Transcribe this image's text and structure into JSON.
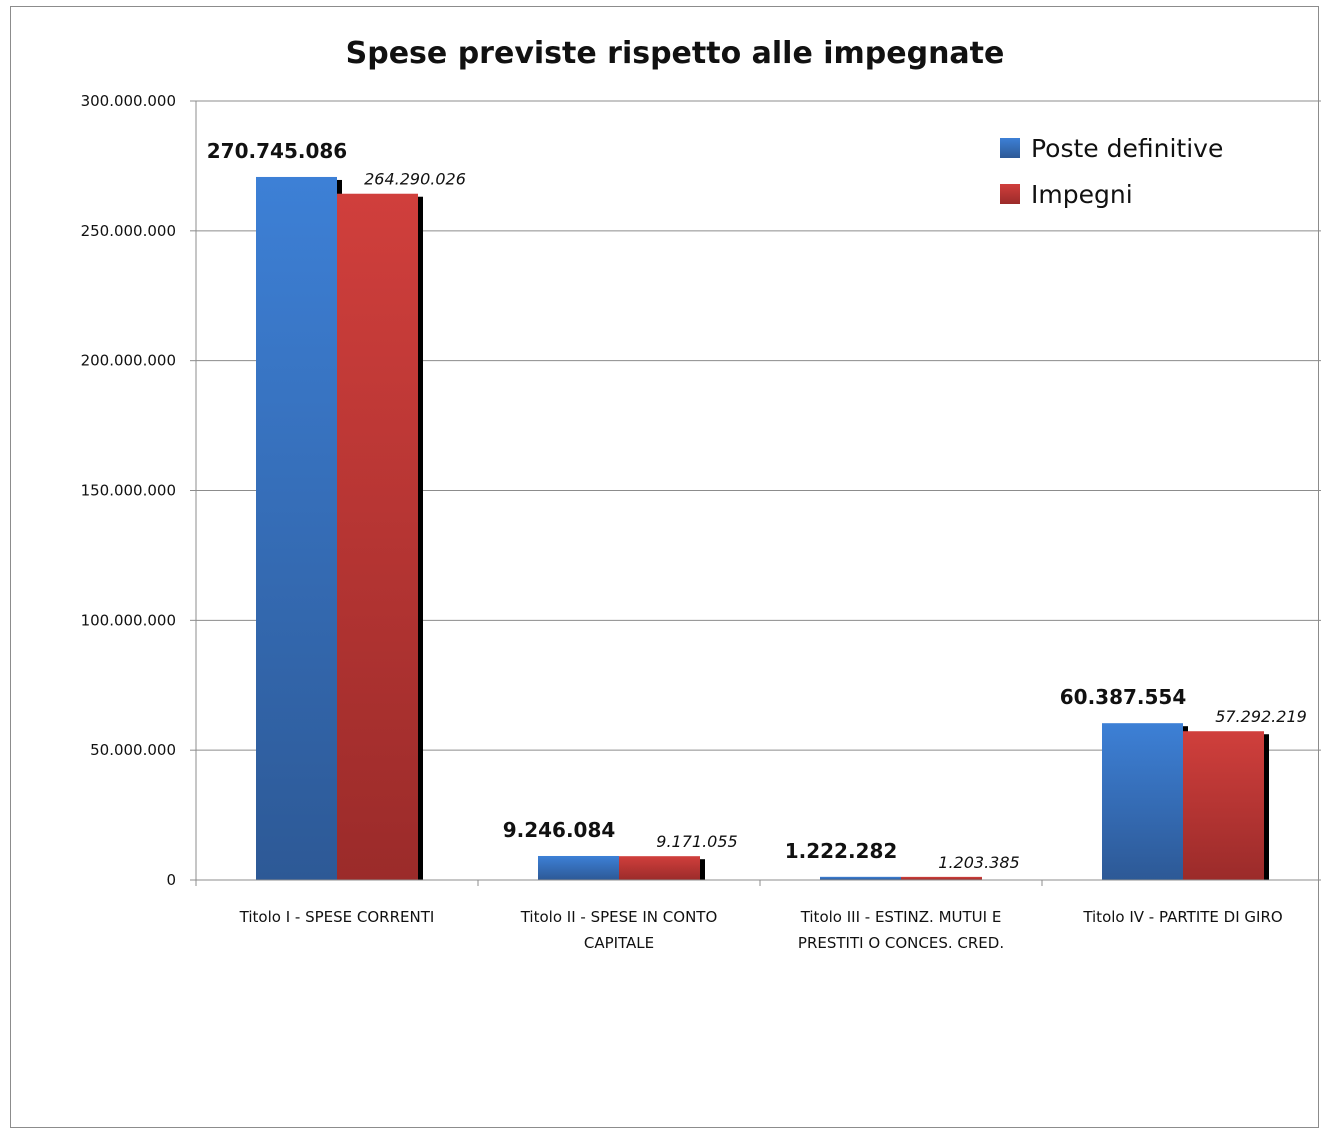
{
  "chart_data": {
    "type": "bar",
    "title": "Spese previste rispetto alle impegnate",
    "xlabel": "",
    "ylabel": "",
    "categories": [
      [
        "Titolo I - SPESE CORRENTI"
      ],
      [
        "Titolo II - SPESE IN CONTO",
        "CAPITALE"
      ],
      [
        "Titolo III - ESTINZ. MUTUI E",
        "PRESTITI O CONCES. CRED."
      ],
      [
        "Titolo IV - PARTITE DI GIRO"
      ]
    ],
    "series": [
      {
        "name": "Poste definitive",
        "color": "#3b7bd0",
        "values": [
          270745086,
          9246084,
          1222282,
          60387554
        ],
        "labels": [
          "270.745.086",
          "9.246.084",
          "1.222.282",
          "60.387.554"
        ]
      },
      {
        "name": "Impegni",
        "color": "#c83c3a",
        "values": [
          264290026,
          9171055,
          1203385,
          57292219
        ],
        "labels": [
          "264.290.026",
          "9.171.055",
          "1.203.385",
          "57.292.219"
        ]
      }
    ],
    "ylim": [
      0,
      300000000
    ],
    "yticks": [
      0,
      50000000,
      100000000,
      150000000,
      200000000,
      250000000,
      300000000
    ],
    "ytick_labels": [
      "0",
      "50.000.000",
      "100.000.000",
      "150.000.000",
      "200.000.000",
      "250.000.000",
      "300.000.000"
    ],
    "grid": true,
    "legend_position": "top-right"
  }
}
